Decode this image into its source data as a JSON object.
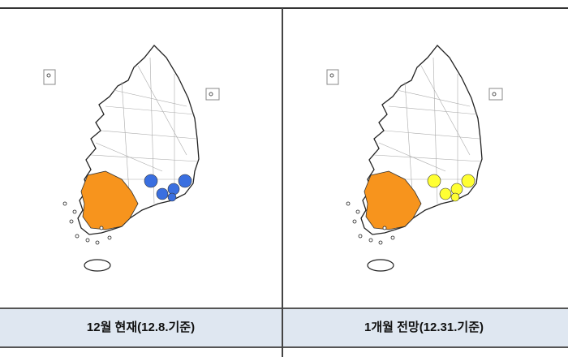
{
  "colors": {
    "orange": "#f7941d",
    "blue": "#3a6fe0",
    "yellow": "#ffff33",
    "outline": "#222222",
    "district": "#aaaaaa"
  },
  "panels": [
    {
      "caption": "12월 현재(12.8.기준)",
      "highlight_west": "orange",
      "highlight_east": "blue"
    },
    {
      "caption": "1개월 전망(12.31.기준)",
      "highlight_west": "orange",
      "highlight_east": "yellow"
    }
  ]
}
